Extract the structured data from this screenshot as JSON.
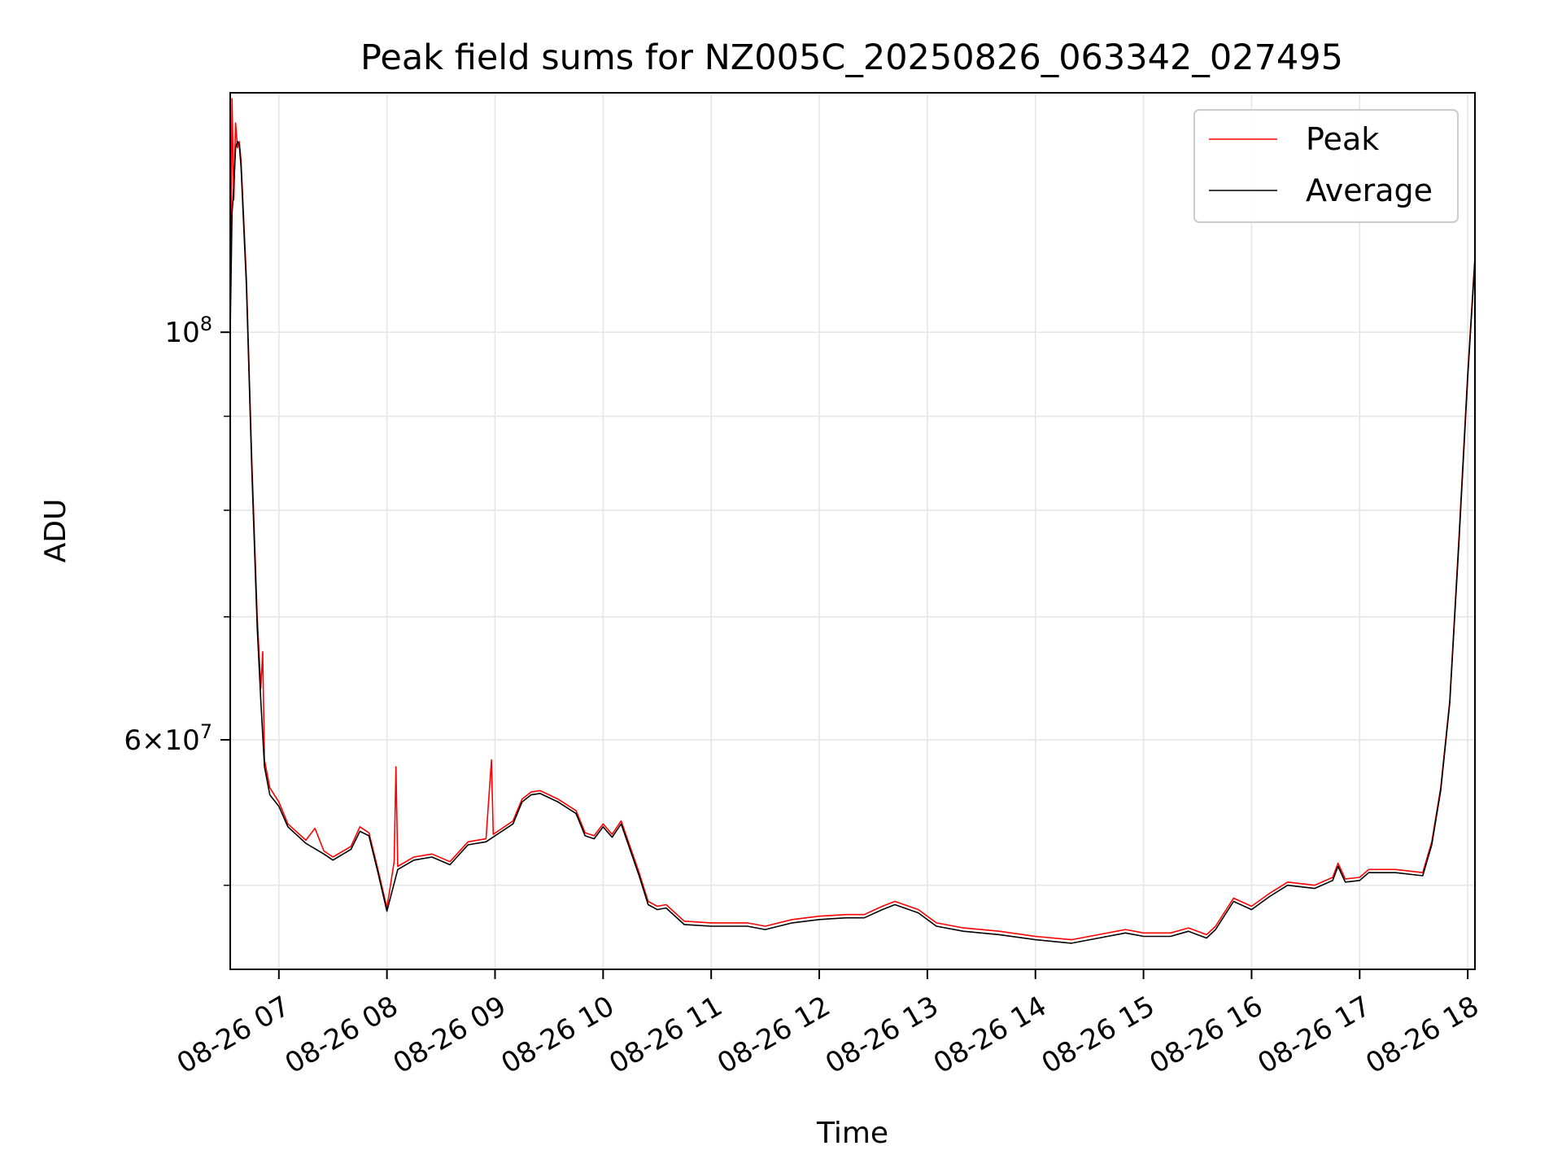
{
  "chart_data": {
    "type": "line",
    "title": "Peak field sums for NZ005C_20250826_063342_027495",
    "xlabel": "Time",
    "ylabel": "ADU",
    "y_scale": "log",
    "ylim": [
      45000000,
      135000000
    ],
    "xlim": [
      "2025-08-26 06:33",
      "2025-08-26 18:04"
    ],
    "grid": true,
    "legend_position": "top-right",
    "x_ticks": [
      {
        "time": "2025-08-26 07:00",
        "label": "08-26 07"
      },
      {
        "time": "2025-08-26 08:00",
        "label": "08-26 08"
      },
      {
        "time": "2025-08-26 09:00",
        "label": "08-26 09"
      },
      {
        "time": "2025-08-26 10:00",
        "label": "08-26 10"
      },
      {
        "time": "2025-08-26 11:00",
        "label": "08-26 11"
      },
      {
        "time": "2025-08-26 12:00",
        "label": "08-26 12"
      },
      {
        "time": "2025-08-26 13:00",
        "label": "08-26 13"
      },
      {
        "time": "2025-08-26 14:00",
        "label": "08-26 14"
      },
      {
        "time": "2025-08-26 15:00",
        "label": "08-26 15"
      },
      {
        "time": "2025-08-26 16:00",
        "label": "08-26 16"
      },
      {
        "time": "2025-08-26 17:00",
        "label": "08-26 17"
      },
      {
        "time": "2025-08-26 18:00",
        "label": "08-26 18"
      }
    ],
    "y_ticks": [
      {
        "value": 100000000,
        "base": "10",
        "exp": "8"
      },
      {
        "value": 60000000,
        "mantissa": "6",
        "base": "10",
        "exp": "7"
      }
    ],
    "series": [
      {
        "name": "Peak",
        "color": "#ff0000",
        "points": [
          [
            "2025-08-26 06:33",
            100000000
          ],
          [
            "2025-08-26 06:34",
            134000000
          ],
          [
            "2025-08-26 06:35",
            118000000
          ],
          [
            "2025-08-26 06:36",
            130000000
          ],
          [
            "2025-08-26 06:37",
            126000000
          ],
          [
            "2025-08-26 06:38",
            127000000
          ],
          [
            "2025-08-26 06:39",
            124000000
          ],
          [
            "2025-08-26 06:42",
            107000000
          ],
          [
            "2025-08-26 06:45",
            85000000
          ],
          [
            "2025-08-26 06:48",
            70000000
          ],
          [
            "2025-08-26 06:50",
            64000000
          ],
          [
            "2025-08-26 06:51",
            67000000
          ],
          [
            "2025-08-26 06:52",
            58500000
          ],
          [
            "2025-08-26 06:55",
            56500000
          ],
          [
            "2025-08-26 07:00",
            55500000
          ],
          [
            "2025-08-26 07:05",
            54000000
          ],
          [
            "2025-08-26 07:15",
            52900000
          ],
          [
            "2025-08-26 07:20",
            53700000
          ],
          [
            "2025-08-26 07:25",
            52200000
          ],
          [
            "2025-08-26 07:30",
            51800000
          ],
          [
            "2025-08-26 07:40",
            52500000
          ],
          [
            "2025-08-26 07:45",
            53800000
          ],
          [
            "2025-08-26 07:50",
            53400000
          ],
          [
            "2025-08-26 07:55",
            51000000
          ],
          [
            "2025-08-26 08:00",
            48600000
          ],
          [
            "2025-08-26 08:04",
            51500000
          ],
          [
            "2025-08-26 08:05",
            58000000
          ],
          [
            "2025-08-26 08:06",
            51200000
          ],
          [
            "2025-08-26 08:15",
            51800000
          ],
          [
            "2025-08-26 08:25",
            52000000
          ],
          [
            "2025-08-26 08:35",
            51500000
          ],
          [
            "2025-08-26 08:45",
            52800000
          ],
          [
            "2025-08-26 08:55",
            53000000
          ],
          [
            "2025-08-26 08:58",
            58500000
          ],
          [
            "2025-08-26 08:59",
            53300000
          ],
          [
            "2025-08-26 09:10",
            54200000
          ],
          [
            "2025-08-26 09:15",
            55700000
          ],
          [
            "2025-08-26 09:20",
            56200000
          ],
          [
            "2025-08-26 09:25",
            56300000
          ],
          [
            "2025-08-26 09:35",
            55700000
          ],
          [
            "2025-08-26 09:45",
            54900000
          ],
          [
            "2025-08-26 09:50",
            53400000
          ],
          [
            "2025-08-26 09:55",
            53200000
          ],
          [
            "2025-08-26 10:00",
            54000000
          ],
          [
            "2025-08-26 10:05",
            53300000
          ],
          [
            "2025-08-26 10:10",
            54200000
          ],
          [
            "2025-08-26 10:20",
            50800000
          ],
          [
            "2025-08-26 10:25",
            49000000
          ],
          [
            "2025-08-26 10:30",
            48700000
          ],
          [
            "2025-08-26 10:35",
            48800000
          ],
          [
            "2025-08-26 10:45",
            47800000
          ],
          [
            "2025-08-26 11:00",
            47700000
          ],
          [
            "2025-08-26 11:20",
            47700000
          ],
          [
            "2025-08-26 11:30",
            47500000
          ],
          [
            "2025-08-26 11:45",
            47900000
          ],
          [
            "2025-08-26 12:00",
            48100000
          ],
          [
            "2025-08-26 12:15",
            48200000
          ],
          [
            "2025-08-26 12:25",
            48200000
          ],
          [
            "2025-08-26 12:35",
            48700000
          ],
          [
            "2025-08-26 12:42",
            49000000
          ],
          [
            "2025-08-26 12:55",
            48500000
          ],
          [
            "2025-08-26 13:05",
            47700000
          ],
          [
            "2025-08-26 13:20",
            47400000
          ],
          [
            "2025-08-26 13:40",
            47200000
          ],
          [
            "2025-08-26 14:00",
            46900000
          ],
          [
            "2025-08-26 14:20",
            46700000
          ],
          [
            "2025-08-26 14:35",
            47000000
          ],
          [
            "2025-08-26 14:50",
            47300000
          ],
          [
            "2025-08-26 15:00",
            47100000
          ],
          [
            "2025-08-26 15:15",
            47100000
          ],
          [
            "2025-08-26 15:25",
            47400000
          ],
          [
            "2025-08-26 15:35",
            47000000
          ],
          [
            "2025-08-26 15:40",
            47500000
          ],
          [
            "2025-08-26 15:50",
            49200000
          ],
          [
            "2025-08-26 16:00",
            48700000
          ],
          [
            "2025-08-26 16:10",
            49500000
          ],
          [
            "2025-08-26 16:20",
            50200000
          ],
          [
            "2025-08-26 16:35",
            50000000
          ],
          [
            "2025-08-26 16:45",
            50500000
          ],
          [
            "2025-08-26 16:48",
            51400000
          ],
          [
            "2025-08-26 16:52",
            50400000
          ],
          [
            "2025-08-26 17:00",
            50500000
          ],
          [
            "2025-08-26 17:05",
            51000000
          ],
          [
            "2025-08-26 17:20",
            51000000
          ],
          [
            "2025-08-26 17:35",
            50800000
          ],
          [
            "2025-08-26 17:40",
            52800000
          ],
          [
            "2025-08-26 17:45",
            56500000
          ],
          [
            "2025-08-26 17:50",
            63000000
          ],
          [
            "2025-08-26 17:55",
            77000000
          ],
          [
            "2025-08-26 18:00",
            95000000
          ],
          [
            "2025-08-26 18:04",
            110000000
          ]
        ]
      },
      {
        "name": "Average",
        "color": "#000000",
        "points": [
          [
            "2025-08-26 06:33",
            100000000
          ],
          [
            "2025-08-26 06:34",
            116000000
          ],
          [
            "2025-08-26 06:35",
            120000000
          ],
          [
            "2025-08-26 06:36",
            126000000
          ],
          [
            "2025-08-26 06:37",
            127000000
          ],
          [
            "2025-08-26 06:38",
            126500000
          ],
          [
            "2025-08-26 06:39",
            123000000
          ],
          [
            "2025-08-26 06:42",
            106000000
          ],
          [
            "2025-08-26 06:45",
            84000000
          ],
          [
            "2025-08-26 06:48",
            69000000
          ],
          [
            "2025-08-26 06:50",
            63000000
          ],
          [
            "2025-08-26 06:52",
            58000000
          ],
          [
            "2025-08-26 06:55",
            56000000
          ],
          [
            "2025-08-26 07:00",
            55200000
          ],
          [
            "2025-08-26 07:05",
            53800000
          ],
          [
            "2025-08-26 07:15",
            52700000
          ],
          [
            "2025-08-26 07:25",
            52000000
          ],
          [
            "2025-08-26 07:30",
            51600000
          ],
          [
            "2025-08-26 07:40",
            52300000
          ],
          [
            "2025-08-26 07:45",
            53500000
          ],
          [
            "2025-08-26 07:50",
            53200000
          ],
          [
            "2025-08-26 07:55",
            50800000
          ],
          [
            "2025-08-26 08:00",
            48400000
          ],
          [
            "2025-08-26 08:06",
            51000000
          ],
          [
            "2025-08-26 08:15",
            51600000
          ],
          [
            "2025-08-26 08:25",
            51800000
          ],
          [
            "2025-08-26 08:35",
            51300000
          ],
          [
            "2025-08-26 08:45",
            52600000
          ],
          [
            "2025-08-26 08:55",
            52800000
          ],
          [
            "2025-08-26 09:10",
            54000000
          ],
          [
            "2025-08-26 09:15",
            55500000
          ],
          [
            "2025-08-26 09:20",
            56000000
          ],
          [
            "2025-08-26 09:25",
            56100000
          ],
          [
            "2025-08-26 09:35",
            55500000
          ],
          [
            "2025-08-26 09:45",
            54700000
          ],
          [
            "2025-08-26 09:50",
            53200000
          ],
          [
            "2025-08-26 09:55",
            53000000
          ],
          [
            "2025-08-26 10:00",
            53800000
          ],
          [
            "2025-08-26 10:05",
            53100000
          ],
          [
            "2025-08-26 10:10",
            54000000
          ],
          [
            "2025-08-26 10:20",
            50600000
          ],
          [
            "2025-08-26 10:25",
            48800000
          ],
          [
            "2025-08-26 10:30",
            48500000
          ],
          [
            "2025-08-26 10:35",
            48600000
          ],
          [
            "2025-08-26 10:45",
            47600000
          ],
          [
            "2025-08-26 11:00",
            47500000
          ],
          [
            "2025-08-26 11:20",
            47500000
          ],
          [
            "2025-08-26 11:30",
            47300000
          ],
          [
            "2025-08-26 11:45",
            47700000
          ],
          [
            "2025-08-26 12:00",
            47900000
          ],
          [
            "2025-08-26 12:15",
            48000000
          ],
          [
            "2025-08-26 12:25",
            48000000
          ],
          [
            "2025-08-26 12:35",
            48500000
          ],
          [
            "2025-08-26 12:42",
            48800000
          ],
          [
            "2025-08-26 12:55",
            48300000
          ],
          [
            "2025-08-26 13:05",
            47500000
          ],
          [
            "2025-08-26 13:20",
            47200000
          ],
          [
            "2025-08-26 13:40",
            47000000
          ],
          [
            "2025-08-26 14:00",
            46700000
          ],
          [
            "2025-08-26 14:20",
            46500000
          ],
          [
            "2025-08-26 14:35",
            46800000
          ],
          [
            "2025-08-26 14:50",
            47100000
          ],
          [
            "2025-08-26 15:00",
            46900000
          ],
          [
            "2025-08-26 15:15",
            46900000
          ],
          [
            "2025-08-26 15:25",
            47200000
          ],
          [
            "2025-08-26 15:35",
            46800000
          ],
          [
            "2025-08-26 15:40",
            47300000
          ],
          [
            "2025-08-26 15:50",
            49000000
          ],
          [
            "2025-08-26 16:00",
            48500000
          ],
          [
            "2025-08-26 16:10",
            49300000
          ],
          [
            "2025-08-26 16:20",
            50000000
          ],
          [
            "2025-08-26 16:35",
            49800000
          ],
          [
            "2025-08-26 16:45",
            50300000
          ],
          [
            "2025-08-26 16:48",
            51200000
          ],
          [
            "2025-08-26 16:52",
            50200000
          ],
          [
            "2025-08-26 17:00",
            50300000
          ],
          [
            "2025-08-26 17:05",
            50800000
          ],
          [
            "2025-08-26 17:20",
            50800000
          ],
          [
            "2025-08-26 17:35",
            50600000
          ],
          [
            "2025-08-26 17:40",
            52600000
          ],
          [
            "2025-08-26 17:45",
            56300000
          ],
          [
            "2025-08-26 17:50",
            62800000
          ],
          [
            "2025-08-26 17:55",
            76500000
          ],
          [
            "2025-08-26 18:00",
            94500000
          ],
          [
            "2025-08-26 18:04",
            109500000
          ]
        ]
      }
    ]
  }
}
